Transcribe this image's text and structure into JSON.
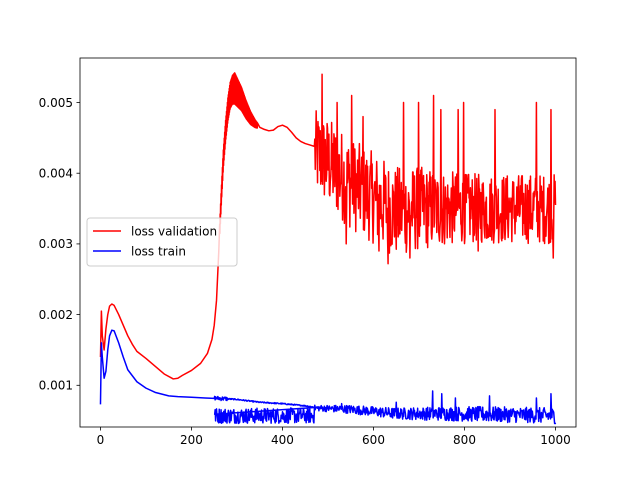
{
  "chart_data": {
    "type": "line",
    "title": "",
    "xlabel": "",
    "ylabel": "",
    "xlim": [
      -45,
      1045
    ],
    "ylim": [
      0.00041,
      0.00563
    ],
    "xticks": [
      0,
      200,
      400,
      600,
      800,
      1000
    ],
    "xtick_labels": [
      "0",
      "200",
      "400",
      "600",
      "800",
      "1000"
    ],
    "yticks": [
      0.001,
      0.002,
      0.003,
      0.004,
      0.005
    ],
    "ytick_labels": [
      "0.001",
      "0.002",
      "0.003",
      "0.004",
      "0.005"
    ],
    "grid": false,
    "legend": {
      "position": "center-left"
    },
    "series": [
      {
        "name": "loss validation",
        "color": "#ff0000",
        "x": [
          0,
          2,
          4,
          8,
          12,
          16,
          20,
          25,
          30,
          40,
          50,
          60,
          70,
          80,
          100,
          120,
          140,
          160,
          170,
          180,
          200,
          220,
          235,
          245,
          250,
          255,
          260,
          265,
          270,
          275,
          280,
          285,
          290,
          295,
          300,
          310,
          320,
          330,
          340,
          350,
          360,
          370,
          380,
          390,
          400,
          410,
          420,
          430,
          440,
          450,
          460,
          470
        ],
        "y": [
          0.0014,
          0.00205,
          0.0017,
          0.0015,
          0.0018,
          0.002,
          0.00212,
          0.00215,
          0.00213,
          0.002,
          0.00185,
          0.0017,
          0.00158,
          0.00148,
          0.00138,
          0.00127,
          0.00116,
          0.00109,
          0.0011,
          0.00114,
          0.00121,
          0.00131,
          0.00145,
          0.00165,
          0.00185,
          0.0022,
          0.0029,
          0.0036,
          0.0042,
          0.0046,
          0.0049,
          0.0051,
          0.00518,
          0.0052,
          0.00515,
          0.00505,
          0.0049,
          0.00478,
          0.0047,
          0.00465,
          0.00462,
          0.0046,
          0.00461,
          0.00466,
          0.00468,
          0.00465,
          0.00458,
          0.0045,
          0.00445,
          0.00442,
          0.0044,
          0.00438
        ],
        "noisy_from_x": 470,
        "noisy_band": [
          [
            470,
            0.0037,
            0.0049
          ],
          [
            500,
            0.0035,
            0.0048
          ],
          [
            550,
            0.0032,
            0.0045
          ],
          [
            600,
            0.003,
            0.0043
          ],
          [
            650,
            0.0028,
            0.0041
          ],
          [
            700,
            0.0029,
            0.0041
          ],
          [
            800,
            0.003,
            0.004
          ],
          [
            900,
            0.003,
            0.004
          ],
          [
            1000,
            0.003,
            0.004
          ]
        ],
        "spikes": [
          [
            487,
            0.0054
          ],
          [
            520,
            0.005
          ],
          [
            552,
            0.0051
          ],
          [
            577,
            0.0048
          ],
          [
            666,
            0.005
          ],
          [
            699,
            0.005
          ],
          [
            732,
            0.0051
          ],
          [
            748,
            0.0049
          ],
          [
            786,
            0.0049
          ],
          [
            798,
            0.005
          ],
          [
            867,
            0.0049
          ],
          [
            958,
            0.005
          ],
          [
            990,
            0.0049
          ],
          [
            540,
            0.003
          ],
          [
            612,
            0.0029
          ],
          [
            632,
            0.00272
          ],
          [
            680,
            0.0028
          ],
          [
            830,
            0.0029
          ],
          [
            995,
            0.0028
          ]
        ],
        "end_value": 0.00355
      },
      {
        "name": "loss train",
        "color": "#0000ff",
        "x": [
          0,
          2,
          4,
          8,
          12,
          16,
          20,
          25,
          30,
          40,
          50,
          60,
          80,
          100,
          120,
          150,
          170,
          200,
          230,
          250,
          300,
          350,
          400,
          450,
          470
        ],
        "y": [
          0.00073,
          0.0016,
          0.0014,
          0.0011,
          0.0012,
          0.0015,
          0.0017,
          0.00178,
          0.00177,
          0.0016,
          0.0014,
          0.00122,
          0.00105,
          0.00096,
          0.0009,
          0.00085,
          0.00084,
          0.00083,
          0.00082,
          0.00082,
          0.0008,
          0.00076,
          0.00074,
          0.00071,
          0.00069
        ],
        "noisy_from_x": 250,
        "noisy_band": [
          [
            470,
            0.00064,
            0.00072
          ],
          [
            550,
            0.0006,
            0.00072
          ],
          [
            650,
            0.00052,
            0.00068
          ],
          [
            750,
            0.0005,
            0.0007
          ],
          [
            850,
            0.00048,
            0.0007
          ],
          [
            1000,
            0.00046,
            0.00068
          ]
        ],
        "spikes": [
          [
            530,
            0.00074
          ],
          [
            650,
            0.00076
          ],
          [
            730,
            0.00092
          ],
          [
            750,
            0.00088
          ],
          [
            780,
            0.00082
          ],
          [
            855,
            0.00085
          ],
          [
            958,
            0.00082
          ],
          [
            990,
            0.00088
          ],
          [
            1000,
            0.00044
          ]
        ],
        "end_value": 0.00045
      }
    ]
  }
}
